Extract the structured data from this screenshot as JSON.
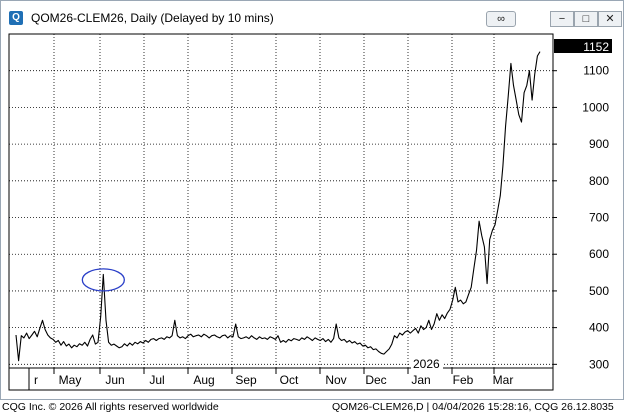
{
  "window": {
    "title": "QOM26-CLEM26, Daily (Delayed by 10 mins)",
    "icon": "Q",
    "buttons": {
      "link": "link-icon",
      "minimize": "minimize-icon",
      "maximize": "maximize-icon",
      "close": "close-icon"
    }
  },
  "footer": {
    "left": "CQG Inc. © 2026 All rights reserved worldwide",
    "right": "QOM26-CLEM26,D | 04/04/2026 15:28:16, CQG 26.12.8035"
  },
  "colors": {
    "line": "#000000",
    "grid": "#000000",
    "annotation": "#2a3fc8",
    "price_tag_bg": "#000000",
    "price_tag_text": "#ffffff"
  },
  "chart_data": {
    "type": "line",
    "y_range": [
      290,
      1200
    ],
    "y_ticks": [
      300,
      400,
      500,
      600,
      700,
      800,
      900,
      1000,
      1100
    ],
    "grid": true,
    "last_price": "1152",
    "year_marker": "2026",
    "x_labels": [
      "Apr",
      "May",
      "Jun",
      "Jul",
      "Aug",
      "Sep",
      "Oct",
      "Nov",
      "Dec",
      "Jan",
      "Feb",
      "Mar"
    ],
    "x_label_text": [
      "r",
      "May",
      "Jun",
      "Jul",
      "Aug",
      "Sep",
      "Oct",
      "Nov",
      "Dec",
      "Jan",
      "Feb",
      "Mar"
    ],
    "series": [
      {
        "values": [
          [
            0,
            380
          ],
          [
            1,
            310
          ],
          [
            2,
            378
          ],
          [
            3,
            372
          ],
          [
            4,
            385
          ],
          [
            5,
            370
          ],
          [
            6,
            380
          ],
          [
            7,
            390
          ],
          [
            8,
            375
          ],
          [
            9,
            398
          ],
          [
            10,
            420
          ],
          [
            11,
            395
          ],
          [
            12,
            380
          ],
          [
            13,
            372
          ],
          [
            14,
            368
          ],
          [
            15,
            360
          ],
          [
            16,
            365
          ],
          [
            17,
            352
          ],
          [
            18,
            362
          ],
          [
            19,
            350
          ],
          [
            20,
            355
          ],
          [
            21,
            345
          ],
          [
            22,
            352
          ],
          [
            23,
            348
          ],
          [
            24,
            356
          ],
          [
            25,
            352
          ],
          [
            26,
            360
          ],
          [
            27,
            350
          ],
          [
            28,
            368
          ],
          [
            29,
            380
          ],
          [
            30,
            355
          ],
          [
            31,
            360
          ],
          [
            32,
            430
          ],
          [
            33,
            545
          ],
          [
            34,
            420
          ],
          [
            35,
            360
          ],
          [
            36,
            352
          ],
          [
            37,
            355
          ],
          [
            38,
            350
          ],
          [
            39,
            345
          ],
          [
            40,
            348
          ],
          [
            41,
            356
          ],
          [
            42,
            350
          ],
          [
            43,
            358
          ],
          [
            44,
            352
          ],
          [
            45,
            360
          ],
          [
            46,
            356
          ],
          [
            47,
            362
          ],
          [
            48,
            358
          ],
          [
            49,
            365
          ],
          [
            50,
            360
          ],
          [
            51,
            368
          ],
          [
            52,
            370
          ],
          [
            53,
            365
          ],
          [
            54,
            370
          ],
          [
            55,
            372
          ],
          [
            56,
            368
          ],
          [
            57,
            375
          ],
          [
            58,
            372
          ],
          [
            59,
            378
          ],
          [
            60,
            420
          ],
          [
            61,
            378
          ],
          [
            62,
            372
          ],
          [
            63,
            375
          ],
          [
            64,
            370
          ],
          [
            65,
            378
          ],
          [
            66,
            382
          ],
          [
            67,
            375
          ],
          [
            68,
            378
          ],
          [
            69,
            380
          ],
          [
            70,
            375
          ],
          [
            71,
            382
          ],
          [
            72,
            378
          ],
          [
            73,
            372
          ],
          [
            74,
            378
          ],
          [
            75,
            380
          ],
          [
            76,
            375
          ],
          [
            77,
            372
          ],
          [
            78,
            378
          ],
          [
            79,
            380
          ],
          [
            80,
            372
          ],
          [
            81,
            378
          ],
          [
            82,
            375
          ],
          [
            83,
            410
          ],
          [
            84,
            375
          ],
          [
            85,
            370
          ],
          [
            86,
            372
          ],
          [
            87,
            375
          ],
          [
            88,
            370
          ],
          [
            89,
            378
          ],
          [
            90,
            372
          ],
          [
            91,
            368
          ],
          [
            92,
            375
          ],
          [
            93,
            370
          ],
          [
            94,
            372
          ],
          [
            95,
            368
          ],
          [
            96,
            375
          ],
          [
            97,
            372
          ],
          [
            98,
            368
          ],
          [
            99,
            378
          ],
          [
            100,
            360
          ],
          [
            101,
            365
          ],
          [
            102,
            360
          ],
          [
            103,
            368
          ],
          [
            104,
            364
          ],
          [
            105,
            370
          ],
          [
            106,
            368
          ],
          [
            107,
            365
          ],
          [
            108,
            372
          ],
          [
            109,
            368
          ],
          [
            110,
            375
          ],
          [
            111,
            370
          ],
          [
            112,
            365
          ],
          [
            113,
            372
          ],
          [
            114,
            368
          ],
          [
            115,
            365
          ],
          [
            116,
            370
          ],
          [
            117,
            362
          ],
          [
            118,
            368
          ],
          [
            119,
            360
          ],
          [
            120,
            370
          ],
          [
            121,
            410
          ],
          [
            122,
            372
          ],
          [
            123,
            365
          ],
          [
            124,
            368
          ],
          [
            125,
            360
          ],
          [
            126,
            365
          ],
          [
            127,
            358
          ],
          [
            128,
            362
          ],
          [
            129,
            355
          ],
          [
            130,
            358
          ],
          [
            131,
            350
          ],
          [
            132,
            352
          ],
          [
            133,
            345
          ],
          [
            134,
            348
          ],
          [
            135,
            340
          ],
          [
            136,
            342
          ],
          [
            137,
            335
          ],
          [
            138,
            330
          ],
          [
            139,
            328
          ],
          [
            140,
            335
          ],
          [
            141,
            342
          ],
          [
            142,
            355
          ],
          [
            143,
            378
          ],
          [
            144,
            372
          ],
          [
            145,
            385
          ],
          [
            146,
            380
          ],
          [
            147,
            388
          ],
          [
            148,
            392
          ],
          [
            149,
            385
          ],
          [
            150,
            392
          ],
          [
            151,
            398
          ],
          [
            152,
            385
          ],
          [
            153,
            405
          ],
          [
            154,
            395
          ],
          [
            155,
            400
          ],
          [
            156,
            420
          ],
          [
            157,
            395
          ],
          [
            158,
            410
          ],
          [
            159,
            438
          ],
          [
            160,
            420
          ],
          [
            161,
            435
          ],
          [
            162,
            425
          ],
          [
            163,
            440
          ],
          [
            164,
            450
          ],
          [
            165,
            475
          ],
          [
            166,
            510
          ],
          [
            167,
            470
          ],
          [
            168,
            475
          ],
          [
            169,
            465
          ],
          [
            170,
            470
          ],
          [
            171,
            490
          ],
          [
            172,
            510
          ],
          [
            173,
            560
          ],
          [
            174,
            610
          ],
          [
            175,
            690
          ],
          [
            176,
            650
          ],
          [
            177,
            620
          ],
          [
            178,
            520
          ],
          [
            179,
            640
          ],
          [
            180,
            665
          ],
          [
            181,
            680
          ],
          [
            182,
            720
          ],
          [
            183,
            760
          ],
          [
            184,
            840
          ],
          [
            185,
            950
          ],
          [
            186,
            1030
          ],
          [
            187,
            1120
          ],
          [
            188,
            1060
          ],
          [
            189,
            1020
          ],
          [
            190,
            980
          ],
          [
            191,
            960
          ],
          [
            192,
            1040
          ],
          [
            193,
            1060
          ],
          [
            194,
            1100
          ],
          [
            195,
            1020
          ],
          [
            196,
            1090
          ],
          [
            197,
            1140
          ],
          [
            198,
            1152
          ]
        ]
      }
    ],
    "annotations": [
      {
        "type": "ellipse",
        "at_index": 33,
        "at_value": 530
      }
    ]
  }
}
